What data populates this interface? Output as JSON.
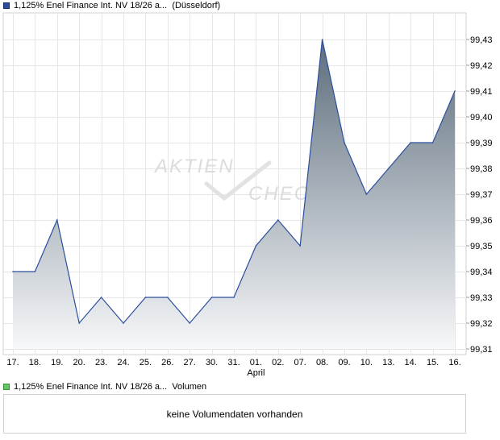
{
  "legend_price": {
    "label": "1,125% Enel Finance Int. NV 18/26 a...",
    "exchange": "(Düsseldorf)",
    "color": "#2b4f9e"
  },
  "legend_volume": {
    "label": "1,125% Enel Finance Int. NV 18/26 a...",
    "suffix": "Volumen",
    "color": "#63c663"
  },
  "watermark": {
    "line1": "AKTIEN",
    "line2": "CHECK"
  },
  "volume_message": "keine Volumendaten vorhanden",
  "chart_data": {
    "type": "area",
    "title": "",
    "xlabel": "",
    "ylabel": "",
    "x_ticks": [
      "17.",
      "18.",
      "19.",
      "20.",
      "23.",
      "24.",
      "25.",
      "26.",
      "27.",
      "30.",
      "31.",
      "01.",
      "02.",
      "07.",
      "08.",
      "09.",
      "10.",
      "13.",
      "14.",
      "15.",
      "16."
    ],
    "x_sublabel": {
      "under_tick": "01.",
      "text": "April"
    },
    "y_ticks": [
      "99,31",
      "99,32",
      "99,33",
      "99,34",
      "99,35",
      "99,36",
      "99,37",
      "99,38",
      "99,39",
      "99,40",
      "99,41",
      "99,42",
      "99,43"
    ],
    "ylim": [
      99.31,
      99.43
    ],
    "grid": true,
    "series": [
      {
        "values": [
          99.34,
          99.34,
          99.36,
          99.32,
          99.33,
          99.32,
          99.33,
          99.33,
          99.32,
          99.33,
          99.33,
          99.35,
          99.36,
          99.35,
          99.43,
          99.39,
          99.37,
          99.38,
          99.39,
          99.39,
          99.41
        ],
        "line_color": "#2b4f9e",
        "fill_top_color": "#5c6d7c",
        "fill_bottom_color": "#f7f8fa"
      }
    ]
  }
}
